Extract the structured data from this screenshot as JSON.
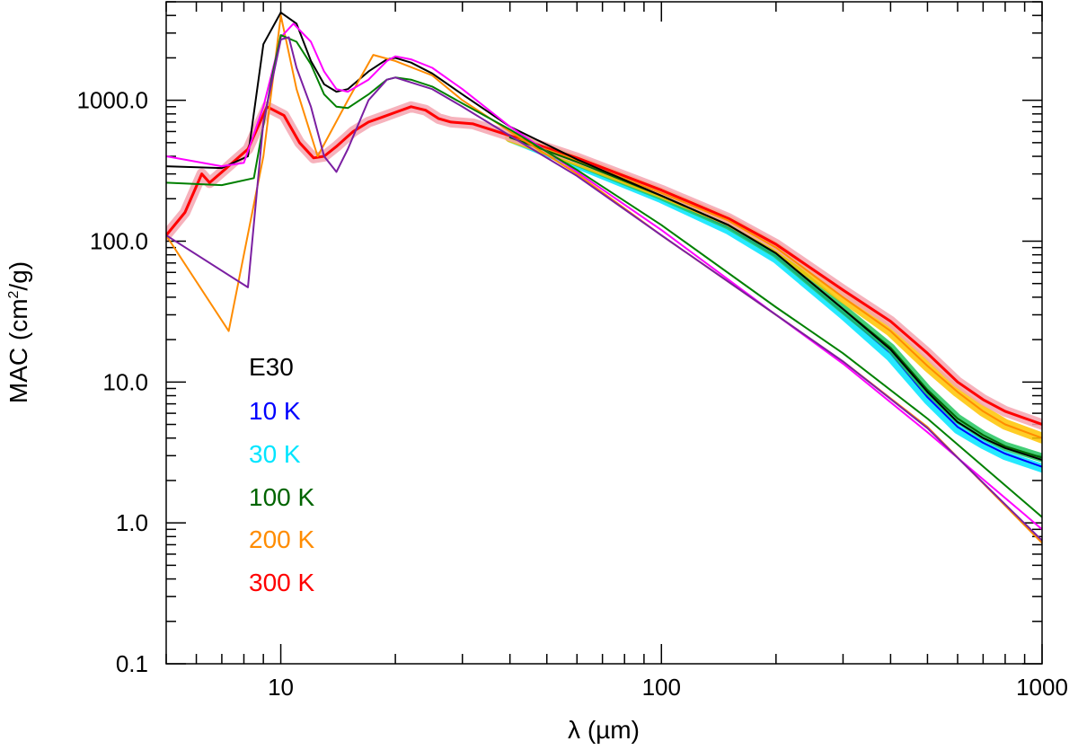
{
  "chart_data": {
    "type": "line",
    "xscale": "log",
    "yscale": "log",
    "xlim": [
      5,
      1000
    ],
    "ylim": [
      0.1,
      5000
    ],
    "xlabel": "λ (µm)",
    "ylabel_main": "MAC (cm",
    "ylabel_sup": "2",
    "ylabel_tail": "/g)",
    "x_ticks": [
      {
        "value": 10,
        "label": "10"
      },
      {
        "value": 100,
        "label": "100"
      },
      {
        "value": 1000,
        "label": "1000"
      }
    ],
    "y_ticks": [
      {
        "value": 0.1,
        "label": "0.1"
      },
      {
        "value": 1,
        "label": "1.0"
      },
      {
        "value": 10,
        "label": "10.0"
      },
      {
        "value": 100,
        "label": "100.0"
      },
      {
        "value": 1000,
        "label": "1000.0"
      }
    ],
    "legend": [
      {
        "label": "E30",
        "color": "#000000"
      },
      {
        "label": "10 K",
        "color": "#0000ff"
      },
      {
        "label": "30 K",
        "color": "#00e5ff"
      },
      {
        "label": "100 K",
        "color": "#006400"
      },
      {
        "label": "200 K",
        "color": "#ff8c00"
      },
      {
        "label": "300 K",
        "color": "#ff0000"
      }
    ],
    "series": [
      {
        "name": "30 K band",
        "type": "band",
        "color": "#00e5ff",
        "width": 10,
        "x": [
          40,
          60,
          100,
          150,
          200,
          300,
          400,
          500,
          600,
          700,
          800,
          1000
        ],
        "y": [
          540,
          350,
          200,
          120,
          75,
          30,
          15,
          7.5,
          4.6,
          3.6,
          3.0,
          2.45
        ]
      },
      {
        "name": "10 K",
        "color": "#0000ff",
        "width": 2,
        "x": [
          40,
          60,
          100,
          150,
          200,
          300,
          400,
          500,
          600,
          700,
          800,
          1000
        ],
        "y": [
          540,
          360,
          205,
          125,
          78,
          31,
          16,
          7.8,
          4.8,
          3.7,
          3.1,
          2.5
        ]
      },
      {
        "name": "100 K band",
        "type": "band",
        "color": "#22c55e",
        "width": 10,
        "x": [
          40,
          60,
          100,
          150,
          200,
          300,
          400,
          500,
          600,
          700,
          800,
          1000
        ],
        "y": [
          545,
          365,
          210,
          130,
          82,
          33,
          17.5,
          8.8,
          5.5,
          4.2,
          3.5,
          2.9
        ]
      },
      {
        "name": "200 K band",
        "type": "band",
        "color": "#ffc400",
        "width": 12,
        "x": [
          40,
          60,
          100,
          150,
          200,
          300,
          400,
          500,
          600,
          700,
          800,
          1000
        ],
        "y": [
          550,
          375,
          220,
          140,
          90,
          40,
          23,
          13,
          8.5,
          6.2,
          5.0,
          4.0
        ]
      },
      {
        "name": "300 K band",
        "type": "band",
        "color": "#f4a5b0",
        "width": 12,
        "x": [
          5,
          5.6,
          6.2,
          6.5,
          7.2,
          8.2,
          9.2,
          10.2,
          11.2,
          12.2,
          13,
          14,
          15.5,
          17,
          18.5,
          20,
          22,
          24,
          26,
          28,
          32,
          40,
          60,
          100,
          150,
          200,
          300,
          400,
          500,
          600,
          700,
          800,
          1000
        ],
        "y": [
          110,
          160,
          300,
          260,
          330,
          450,
          900,
          780,
          500,
          390,
          400,
          470,
          600,
          700,
          760,
          820,
          900,
          850,
          740,
          700,
          680,
          560,
          390,
          230,
          145,
          95,
          45,
          27,
          16,
          10,
          7.5,
          6.2,
          5.0
        ]
      },
      {
        "name": "300 K",
        "color": "#ff0000",
        "width": 3,
        "x": [
          5,
          5.6,
          6.2,
          6.5,
          7.2,
          8.2,
          9.2,
          10.2,
          11.2,
          12.2,
          13,
          14,
          15.5,
          17,
          18.5,
          20,
          22,
          24,
          26,
          28,
          32,
          40,
          60,
          100,
          150,
          200,
          300,
          400,
          500,
          600,
          700,
          800,
          1000
        ],
        "y": [
          110,
          160,
          300,
          260,
          330,
          450,
          900,
          780,
          500,
          390,
          400,
          470,
          600,
          700,
          760,
          820,
          900,
          850,
          740,
          700,
          680,
          560,
          390,
          230,
          145,
          95,
          45,
          27,
          16,
          10,
          7.5,
          6.2,
          5.0
        ]
      },
      {
        "name": "200 K",
        "color": "#ff8c00",
        "width": 2,
        "x": [
          40,
          60,
          100,
          150,
          200,
          300,
          400,
          500,
          600,
          700,
          800,
          1000
        ],
        "y": [
          550,
          375,
          220,
          140,
          90,
          40,
          23,
          13,
          8.5,
          6.2,
          5.0,
          4.0
        ]
      },
      {
        "name": "100 K",
        "color": "#006400",
        "width": 2,
        "x": [
          40,
          60,
          100,
          150,
          200,
          300,
          400,
          500,
          600,
          700,
          800,
          1000
        ],
        "y": [
          545,
          365,
          210,
          130,
          82,
          33,
          17.5,
          8.8,
          5.5,
          4.2,
          3.5,
          2.9
        ]
      },
      {
        "name": "E30",
        "color": "#000000",
        "width": 2,
        "x": [
          5,
          7,
          8.2,
          9,
          10,
          11,
          12,
          13,
          14,
          15,
          17,
          19,
          20,
          22,
          25,
          30,
          40,
          60,
          100,
          150,
          200,
          300,
          400,
          500,
          600,
          700,
          800,
          1000
        ],
        "y": [
          340,
          330,
          400,
          2500,
          4200,
          3500,
          1900,
          1300,
          1150,
          1200,
          1600,
          1950,
          2000,
          1850,
          1550,
          1100,
          650,
          380,
          210,
          130,
          82,
          33,
          17,
          8.5,
          5.2,
          4.0,
          3.4,
          2.8
        ]
      },
      {
        "name": "orange thin",
        "color": "#ff8c00",
        "width": 2,
        "x": [
          5,
          7.3,
          9,
          10,
          11,
          12.5,
          15,
          17.5,
          20,
          25,
          30,
          40,
          60,
          100,
          200,
          300,
          500,
          1000
        ],
        "y": [
          110,
          23,
          400,
          4000,
          1200,
          400,
          1000,
          2100,
          1900,
          1500,
          1000,
          600,
          300,
          110,
          30,
          14,
          4.8,
          0.72
        ]
      },
      {
        "name": "magenta thin",
        "color": "#ff00ff",
        "width": 2,
        "x": [
          5,
          7,
          8,
          9,
          10,
          10.8,
          12,
          13,
          14,
          15,
          17,
          19,
          20,
          22,
          25,
          30,
          40,
          60,
          100,
          200,
          300,
          500,
          1000
        ],
        "y": [
          400,
          340,
          360,
          900,
          2800,
          3500,
          2600,
          1600,
          1200,
          1150,
          1400,
          1900,
          2050,
          1950,
          1700,
          1200,
          650,
          310,
          120,
          30,
          13.5,
          4.4,
          0.9
        ]
      },
      {
        "name": "green thin",
        "color": "#008000",
        "width": 2,
        "x": [
          5,
          7,
          8.5,
          9.5,
          10,
          11,
          12,
          13,
          14,
          15,
          17,
          19,
          20,
          22,
          25,
          30,
          40,
          60,
          100,
          200,
          300,
          500,
          1000
        ],
        "y": [
          260,
          250,
          280,
          1500,
          2900,
          2600,
          1800,
          1100,
          900,
          880,
          1100,
          1400,
          1450,
          1400,
          1250,
          950,
          620,
          320,
          130,
          34,
          16,
          5.5,
          1.1
        ]
      },
      {
        "name": "purple thin",
        "color": "#7b1fa2",
        "width": 2,
        "x": [
          5,
          8.2,
          9,
          10,
          10.5,
          11,
          12,
          13,
          14,
          15,
          17,
          19,
          20,
          25,
          30,
          40,
          60,
          100,
          200,
          300,
          500,
          1000
        ],
        "y": [
          110,
          47,
          700,
          2700,
          2800,
          1700,
          900,
          400,
          310,
          450,
          1000,
          1400,
          1450,
          1200,
          900,
          560,
          290,
          110,
          30,
          14,
          4.7,
          0.75
        ]
      }
    ]
  }
}
